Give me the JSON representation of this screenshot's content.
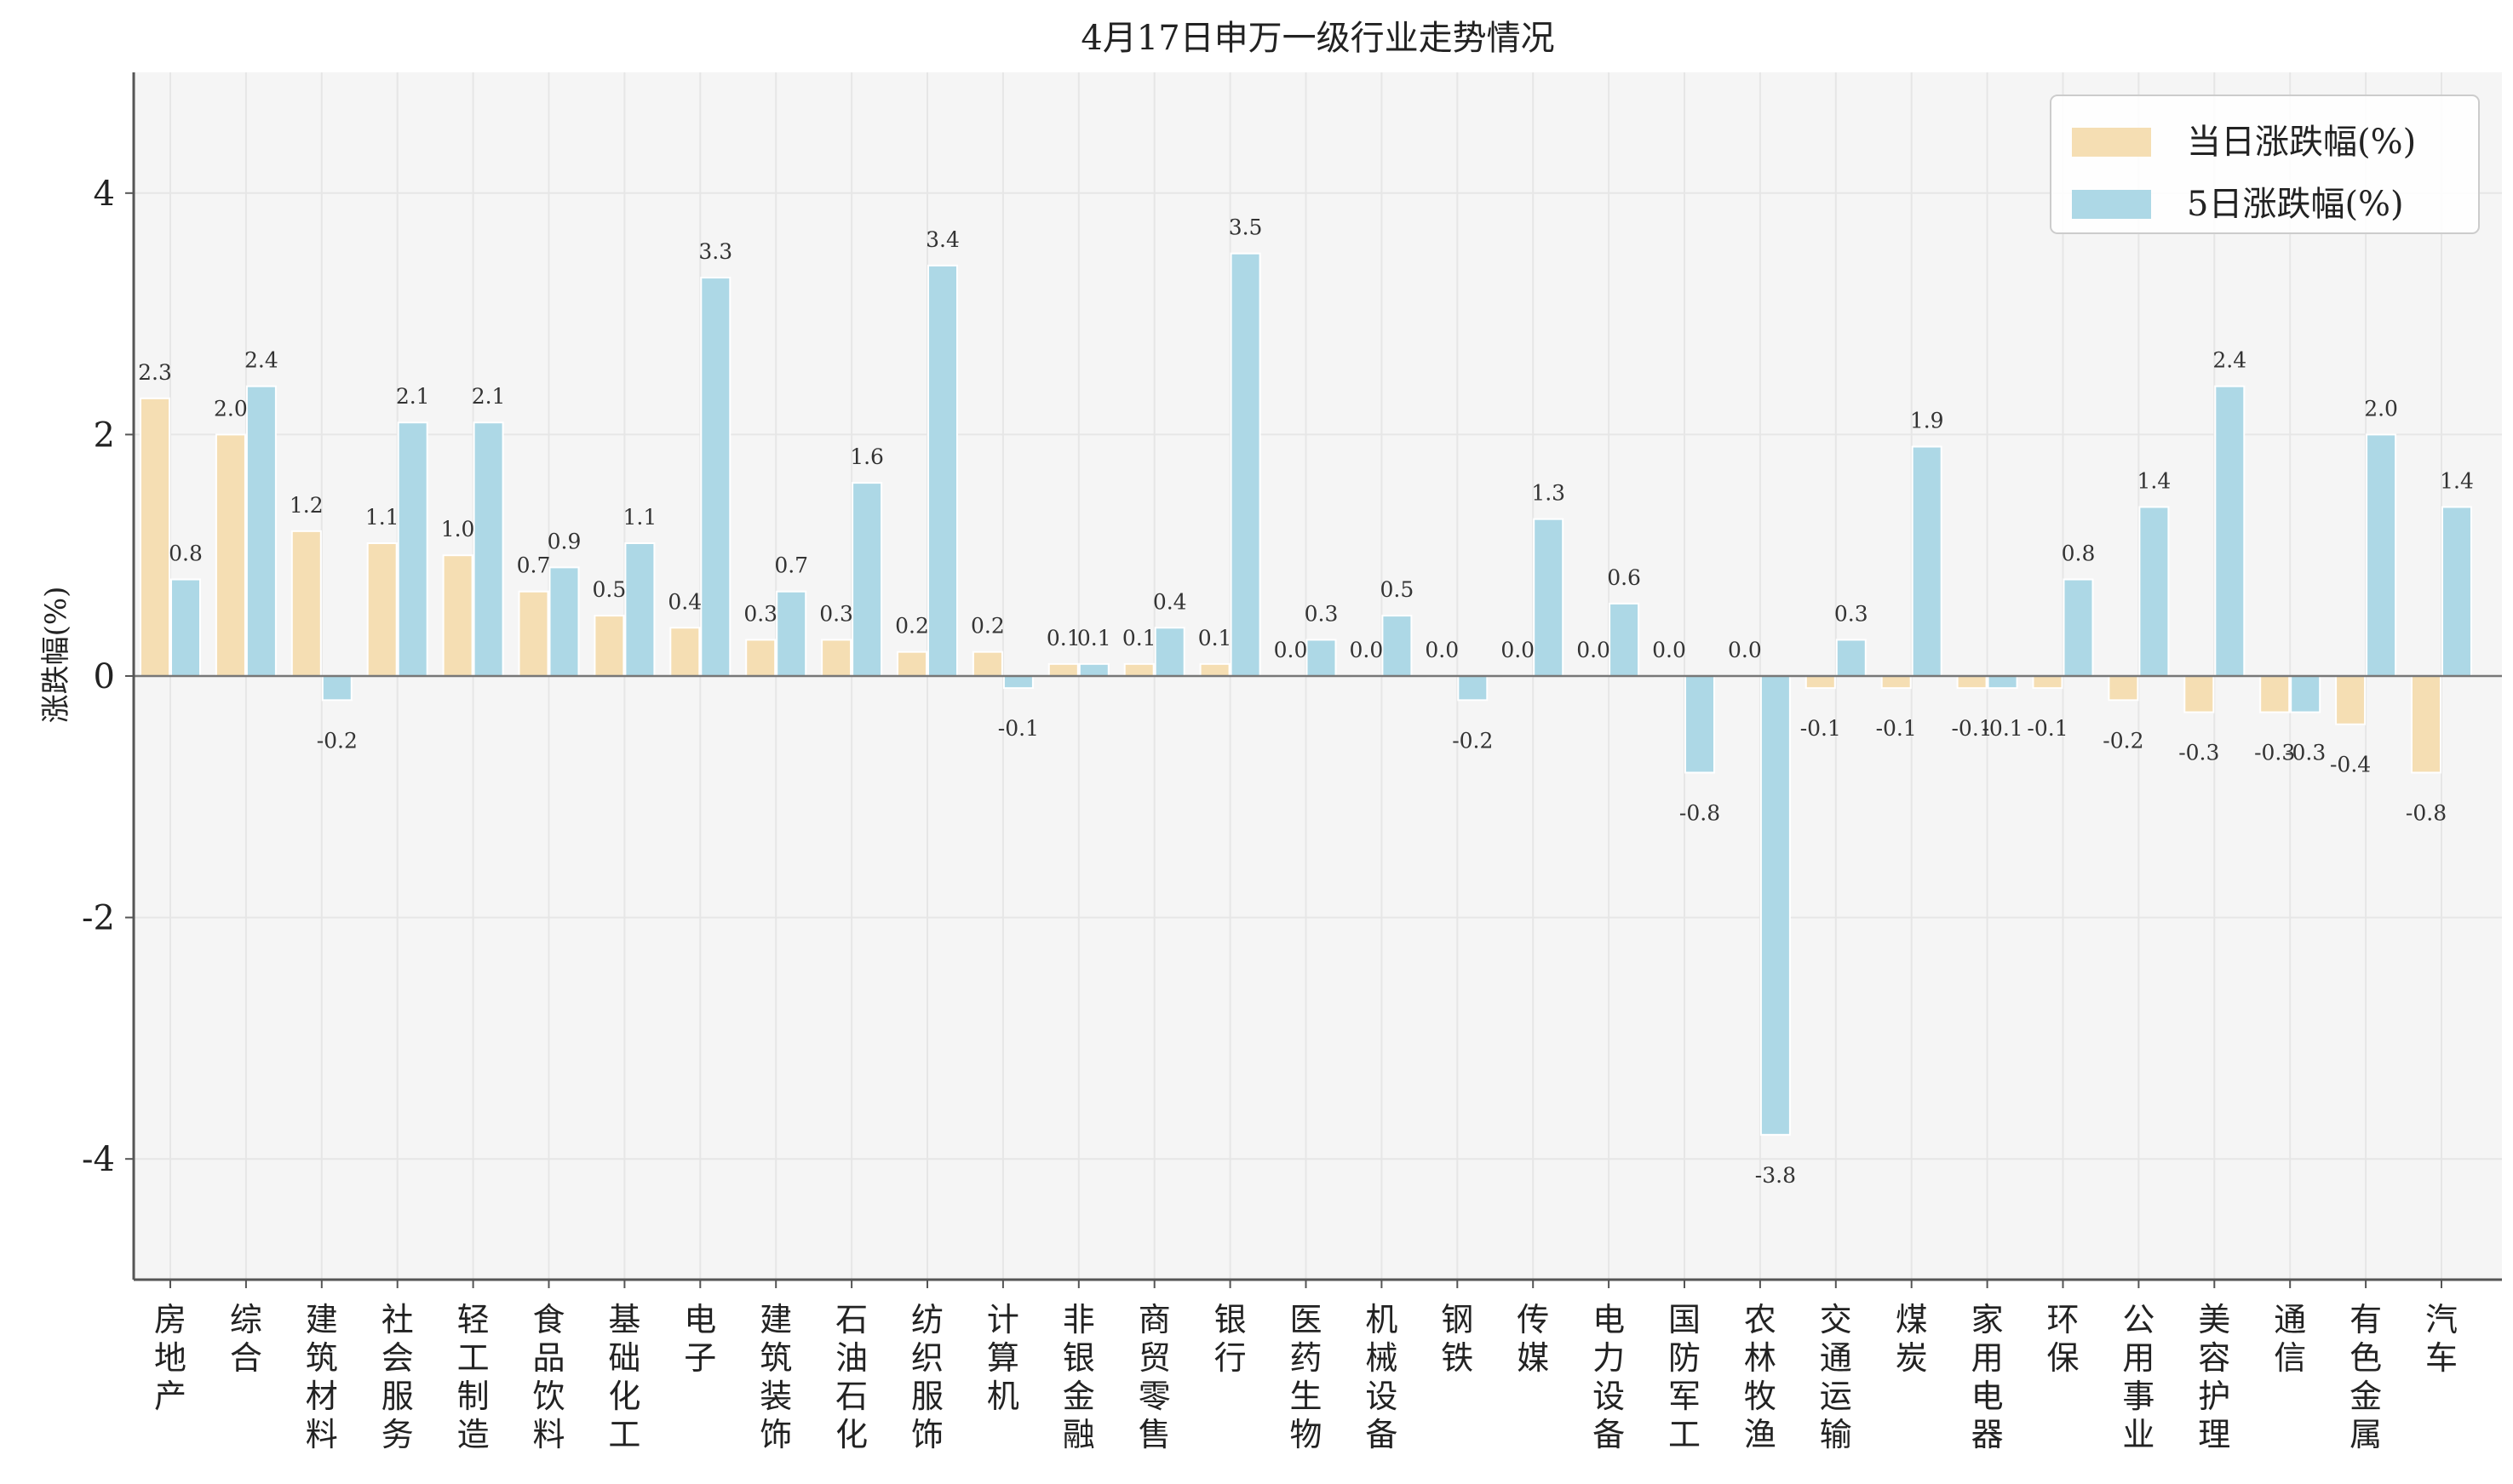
{
  "colors": {
    "today": "#f5deb3",
    "five_day": "#add8e6",
    "plot_bg": "#f5f5f5",
    "grid": "#e6e6e6",
    "axis": "#555555",
    "zero_line": "#777777"
  },
  "chart_data": {
    "type": "bar",
    "title": "4月17日申万一级行业走势情况",
    "ylabel": "涨跌幅(%)",
    "xlabel": "",
    "ylim": [
      -5,
      5
    ],
    "yticks": [
      -4,
      -2,
      0,
      2,
      4
    ],
    "grid": true,
    "legend_position": "top-right",
    "categories": [
      "房地产",
      "综合",
      "建筑材料",
      "社会服务",
      "轻工制造",
      "食品饮料",
      "基础化工",
      "电子",
      "建筑装饰",
      "石油石化",
      "纺织服饰",
      "计算机",
      "非银金融",
      "商贸零售",
      "银行",
      "医药生物",
      "机械设备",
      "钢铁",
      "传媒",
      "电力设备",
      "国防军工",
      "农林牧渔",
      "交通运输",
      "煤炭",
      "家用电器",
      "环保",
      "公用事业",
      "美容护理",
      "通信",
      "有色金属",
      "汽车"
    ],
    "series": [
      {
        "name": "当日涨跌幅(%)",
        "color": "#f5deb3",
        "values": [
          2.3,
          2.0,
          1.2,
          1.1,
          1.0,
          0.7,
          0.5,
          0.4,
          0.3,
          0.3,
          0.2,
          0.2,
          0.1,
          0.1,
          0.1,
          0.0,
          0.0,
          0.0,
          0.0,
          0.0,
          0.0,
          0.0,
          -0.1,
          -0.1,
          -0.1,
          -0.1,
          -0.2,
          -0.3,
          -0.3,
          -0.4,
          -0.8
        ]
      },
      {
        "name": "5日涨跌幅(%)",
        "color": "#add8e6",
        "values": [
          0.8,
          2.4,
          -0.2,
          2.1,
          2.1,
          0.9,
          1.1,
          3.3,
          0.7,
          1.6,
          3.4,
          -0.1,
          0.1,
          0.4,
          3.5,
          0.3,
          0.5,
          -0.2,
          1.3,
          0.6,
          -0.8,
          -3.8,
          0.3,
          1.9,
          -0.1,
          0.8,
          1.4,
          2.4,
          -0.3,
          2.0,
          1.4
        ]
      }
    ]
  }
}
